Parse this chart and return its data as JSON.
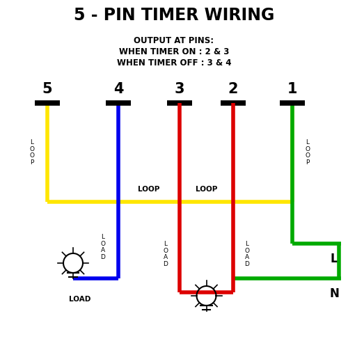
{
  "title": "5 - PIN TIMER WIRING",
  "subtitle_lines": [
    "OUTPUT AT PINS:",
    "WHEN TIMER ON : 2 & 3",
    "WHEN TIMER OFF : 3 & 4"
  ],
  "pin_names": [
    "5",
    "4",
    "3",
    "2",
    "1"
  ],
  "colors": {
    "yellow": "#FFE600",
    "blue": "#0000EE",
    "red": "#DD0000",
    "green": "#00AA00",
    "black": "#000000",
    "white": "#FFFFFF"
  },
  "background": "#FFFFFF",
  "lw_wire": 4.0,
  "lw_bar": 5.5
}
